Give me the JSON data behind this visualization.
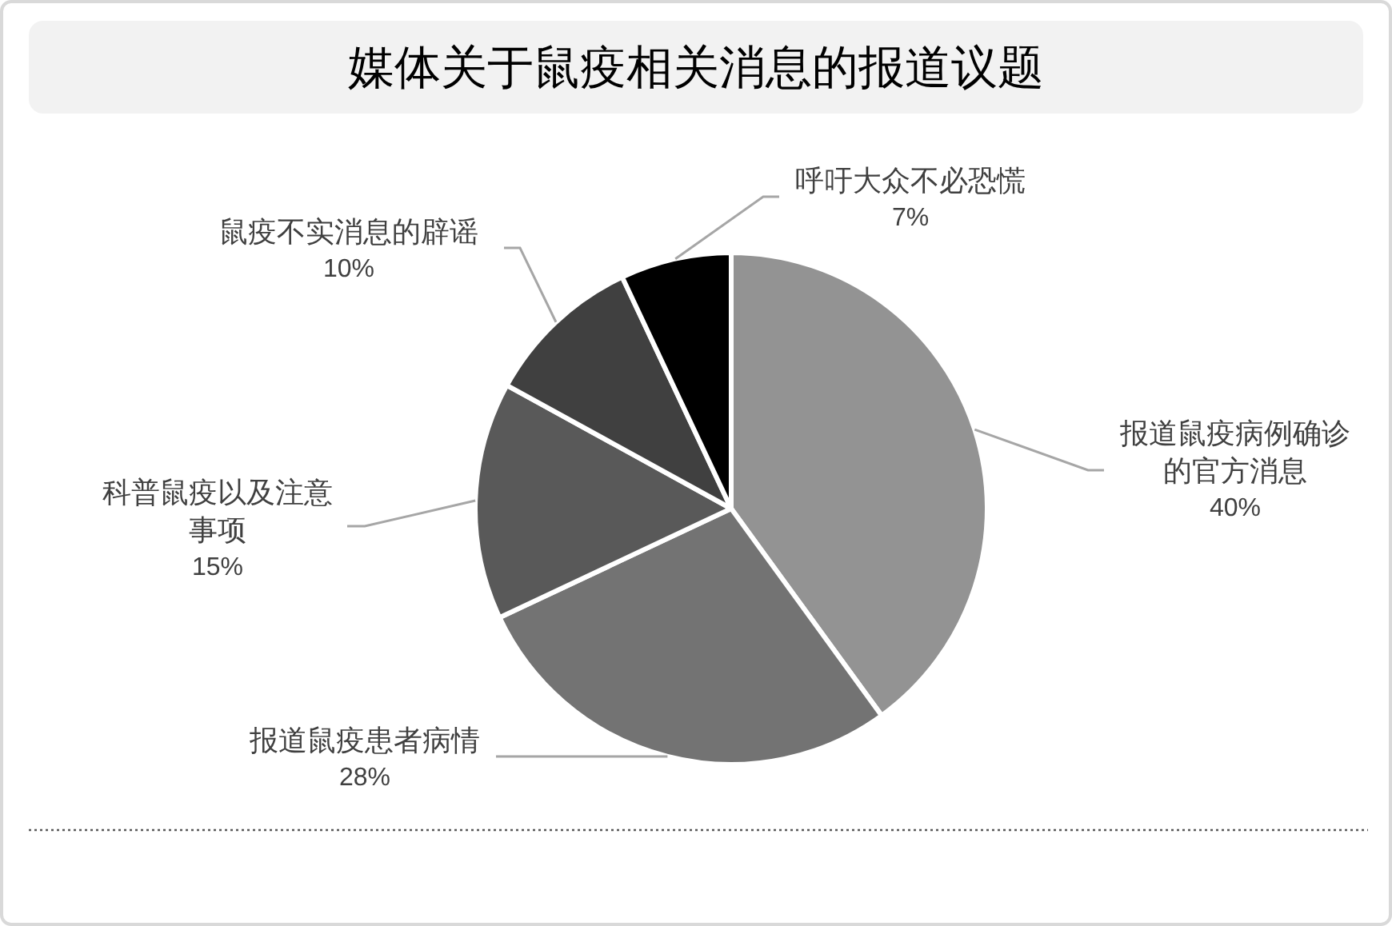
{
  "chart_data": {
    "type": "pie",
    "title": "媒体关于鼠疫相关消息的报道议题",
    "categories": [
      "报道鼠疫病例确诊的官方消息",
      "报道鼠疫患者病情",
      "科普鼠疫以及注意事项",
      "鼠疫不实消息的辟谣",
      "呼吁大众不必恐慌"
    ],
    "values": [
      40,
      28,
      15,
      10,
      7
    ],
    "colors": [
      "#939393",
      "#737373",
      "#595959",
      "#404040",
      "#000000"
    ],
    "value_labels": [
      "40%",
      "28%",
      "15%",
      "10%",
      "7%"
    ]
  }
}
